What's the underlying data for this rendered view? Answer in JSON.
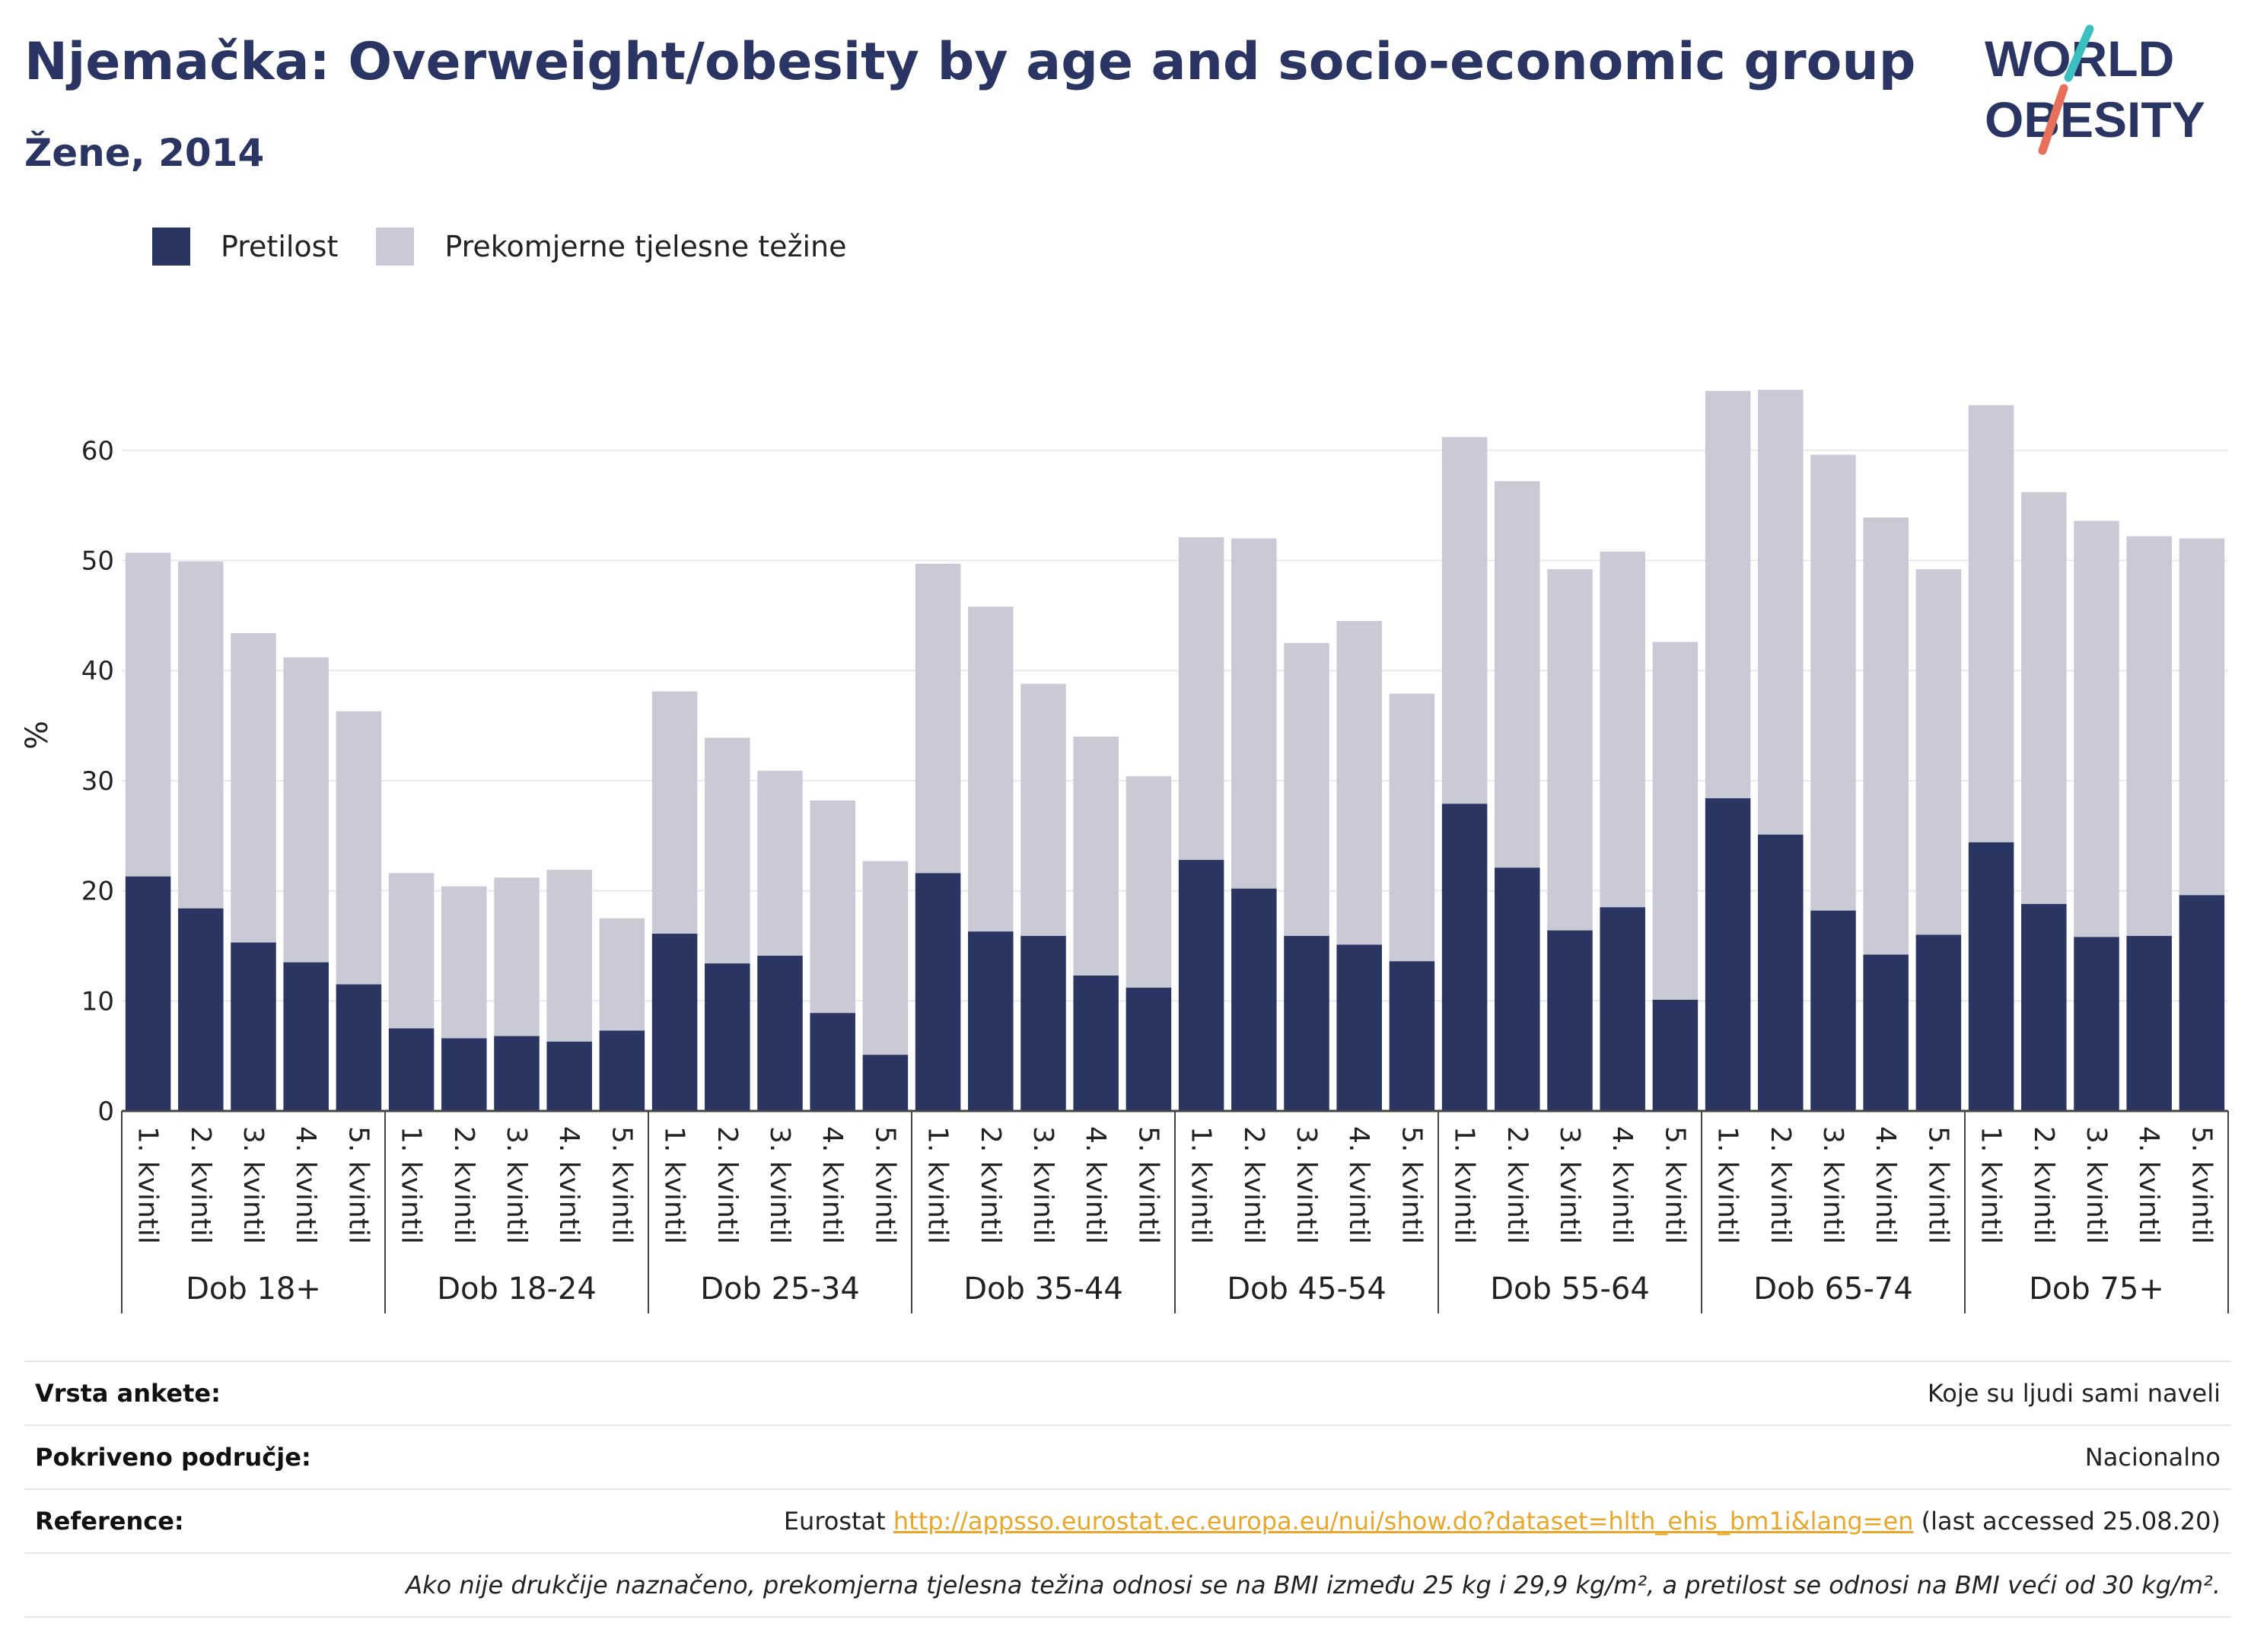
{
  "title": "Njemačka: Overweight/obesity by age and socio-economic group",
  "subtitle": "Žene, 2014",
  "logo": {
    "line1": "WORLD",
    "line2": "OBESITY"
  },
  "colors": {
    "obesity": "#2a3562",
    "overweight": "#c9cad6",
    "title": "#2b3563",
    "grid": "#e8e8ee",
    "link": "#e8a72a"
  },
  "chart_data": {
    "type": "bar",
    "stacked": true,
    "ylabel": "%",
    "ylim": [
      0,
      68
    ],
    "yticks": [
      0,
      10,
      20,
      30,
      40,
      50,
      60
    ],
    "grid": true,
    "legend_position": "top-left",
    "series": [
      {
        "name": "Pretilost",
        "color": "#2a3562"
      },
      {
        "name": "Prekomjerne tjelesne težine",
        "color": "#c9cad6"
      }
    ],
    "quintile_labels": [
      "1. kvintil",
      "2. kvintil",
      "3. kvintil",
      "4. kvintil",
      "5. kvintil"
    ],
    "groups": [
      {
        "name": "Dob 18+",
        "obesity": [
          21.3,
          18.4,
          15.3,
          13.5,
          11.5
        ],
        "total": [
          50.7,
          49.9,
          43.4,
          41.2,
          36.3
        ]
      },
      {
        "name": "Dob 18-24",
        "obesity": [
          7.5,
          6.6,
          6.8,
          6.3,
          7.3
        ],
        "total": [
          21.6,
          20.4,
          21.2,
          21.9,
          17.5
        ]
      },
      {
        "name": "Dob 25-34",
        "obesity": [
          16.1,
          13.4,
          14.1,
          8.9,
          5.1
        ],
        "total": [
          38.1,
          33.9,
          30.9,
          28.2,
          22.7
        ]
      },
      {
        "name": "Dob 35-44",
        "obesity": [
          21.6,
          16.3,
          15.9,
          12.3,
          11.2
        ],
        "total": [
          49.7,
          45.8,
          38.8,
          34.0,
          30.4
        ]
      },
      {
        "name": "Dob 45-54",
        "obesity": [
          22.8,
          20.2,
          15.9,
          15.1,
          13.6
        ],
        "total": [
          52.1,
          52.0,
          42.5,
          44.5,
          37.9
        ]
      },
      {
        "name": "Dob 55-64",
        "obesity": [
          27.9,
          22.1,
          16.4,
          18.5,
          10.1
        ],
        "total": [
          61.2,
          57.2,
          49.2,
          50.8,
          42.6
        ]
      },
      {
        "name": "Dob 65-74",
        "obesity": [
          28.4,
          25.1,
          18.2,
          14.2,
          16.0
        ],
        "total": [
          65.4,
          65.5,
          59.6,
          53.9,
          49.2
        ]
      },
      {
        "name": "Dob 75+",
        "obesity": [
          24.4,
          18.8,
          15.8,
          15.9,
          19.6
        ],
        "total": [
          64.1,
          56.2,
          53.6,
          52.2,
          52.0
        ]
      }
    ]
  },
  "info": {
    "survey_label": "Vrsta ankete:",
    "survey_value": "Koje su ljudi sami naveli",
    "coverage_label": "Pokriveno područje:",
    "coverage_value": "Nacionalno",
    "reference_label": "Reference:",
    "reference_prefix": "Eurostat ",
    "reference_link": "http://appsso.eurostat.ec.europa.eu/nui/show.do?dataset=hlth_ehis_bm1i&lang=en",
    "reference_suffix": " (last accessed 25.08.20)",
    "note": "Ako nije drukčije naznačeno, prekomjerna tjelesna težina odnosi se na BMI između 25 kg i 29,9 kg/m², a pretilost se odnosi na BMI veći od 30 kg/m²."
  }
}
